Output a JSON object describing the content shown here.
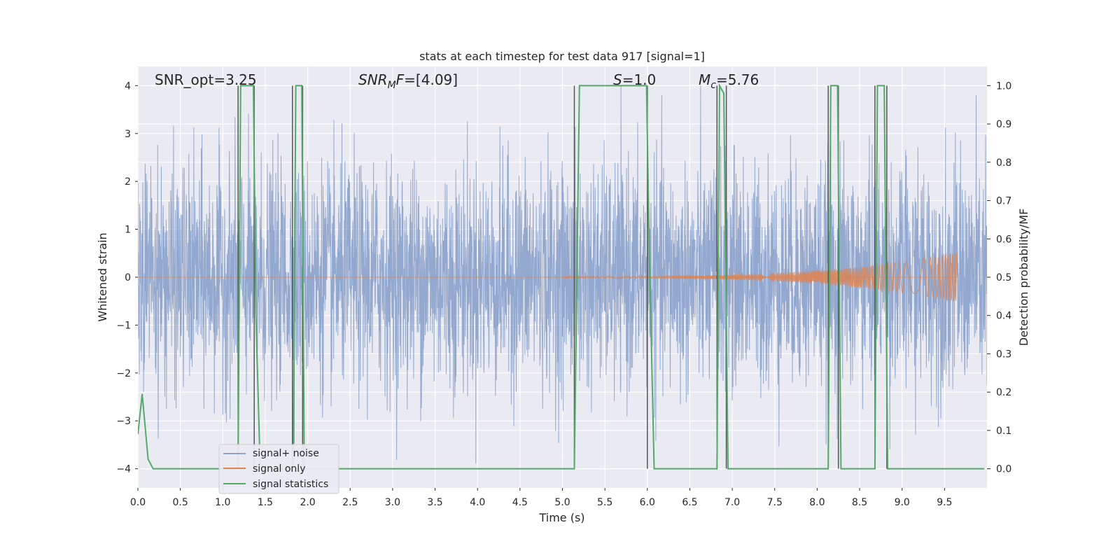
{
  "chart_data": {
    "type": "line",
    "title": "stats at each timestep for test data 917 [signal=1]",
    "xlabel": "Time (s)",
    "ylabel_left": "Whitened strain",
    "ylabel_right": "Detection probability/MF",
    "xlim": [
      0.0,
      10.0
    ],
    "ylim_left": [
      -4.4,
      4.4
    ],
    "ylim_right": [
      -0.05,
      1.05
    ],
    "x_ticks": [
      "0.0",
      "0.5",
      "1.0",
      "1.5",
      "2.0",
      "2.5",
      "3.0",
      "3.5",
      "4.0",
      "4.5",
      "5.0",
      "5.5",
      "6.0",
      "6.5",
      "7.0",
      "7.5",
      "8.0",
      "8.5",
      "9.0",
      "9.5"
    ],
    "y_ticks_left": [
      "4",
      "3",
      "2",
      "1",
      "0",
      "−1",
      "−2",
      "−3",
      "−4"
    ],
    "y_ticks_right": [
      "1.0",
      "0.9",
      "0.8",
      "0.7",
      "0.6",
      "0.5",
      "0.4",
      "0.3",
      "0.2",
      "0.1",
      "0.0"
    ],
    "grid": true,
    "legend": {
      "placement": "lower-left",
      "entries": [
        "signal+ noise",
        "signal only",
        "signal statistics"
      ]
    },
    "annotations": {
      "snr_opt": "SNR_opt=3.25",
      "snr_mf_value": "=[4.09]",
      "s_value": "=1.0",
      "mc_value": "=5.76"
    },
    "colors": {
      "noise": "#8ea4cc",
      "signal": "#dd8452",
      "statistic": "#55a868",
      "vline": "#555555",
      "background": "#eaeaf2",
      "grid": "#ffffff"
    },
    "series": [
      {
        "name": "signal statistics",
        "x": [
          0.0,
          0.05,
          0.12,
          0.18,
          1.18,
          1.21,
          1.24,
          1.36,
          1.39,
          1.44,
          1.83,
          1.86,
          1.93,
          1.96,
          5.14,
          5.2,
          5.99,
          6.02,
          6.08,
          6.82,
          6.85,
          6.9,
          6.95,
          6.99,
          8.13,
          8.16,
          8.24,
          8.28,
          8.68,
          8.71,
          8.79,
          8.83,
          9.97
        ],
        "y": [
          0.09,
          0.195,
          0.025,
          0.0,
          0.0,
          1.0,
          1.0,
          1.0,
          0.4,
          0.0,
          0.0,
          1.0,
          1.0,
          0.0,
          0.0,
          1.0,
          1.0,
          0.6,
          0.0,
          0.0,
          1.0,
          0.98,
          0.0,
          0.0,
          0.0,
          1.0,
          1.0,
          0.0,
          0.0,
          1.0,
          1.0,
          0.0,
          0.0
        ]
      },
      {
        "name": "detection markers",
        "x": [
          1.18,
          1.37,
          1.82,
          1.94,
          5.14,
          6.0,
          6.82,
          6.93,
          8.13,
          8.25,
          8.68,
          8.82
        ]
      },
      {
        "name": "signal only",
        "x_start": 5.0,
        "x_peak": 9.65,
        "peak_amplitude": 0.5
      }
    ]
  }
}
